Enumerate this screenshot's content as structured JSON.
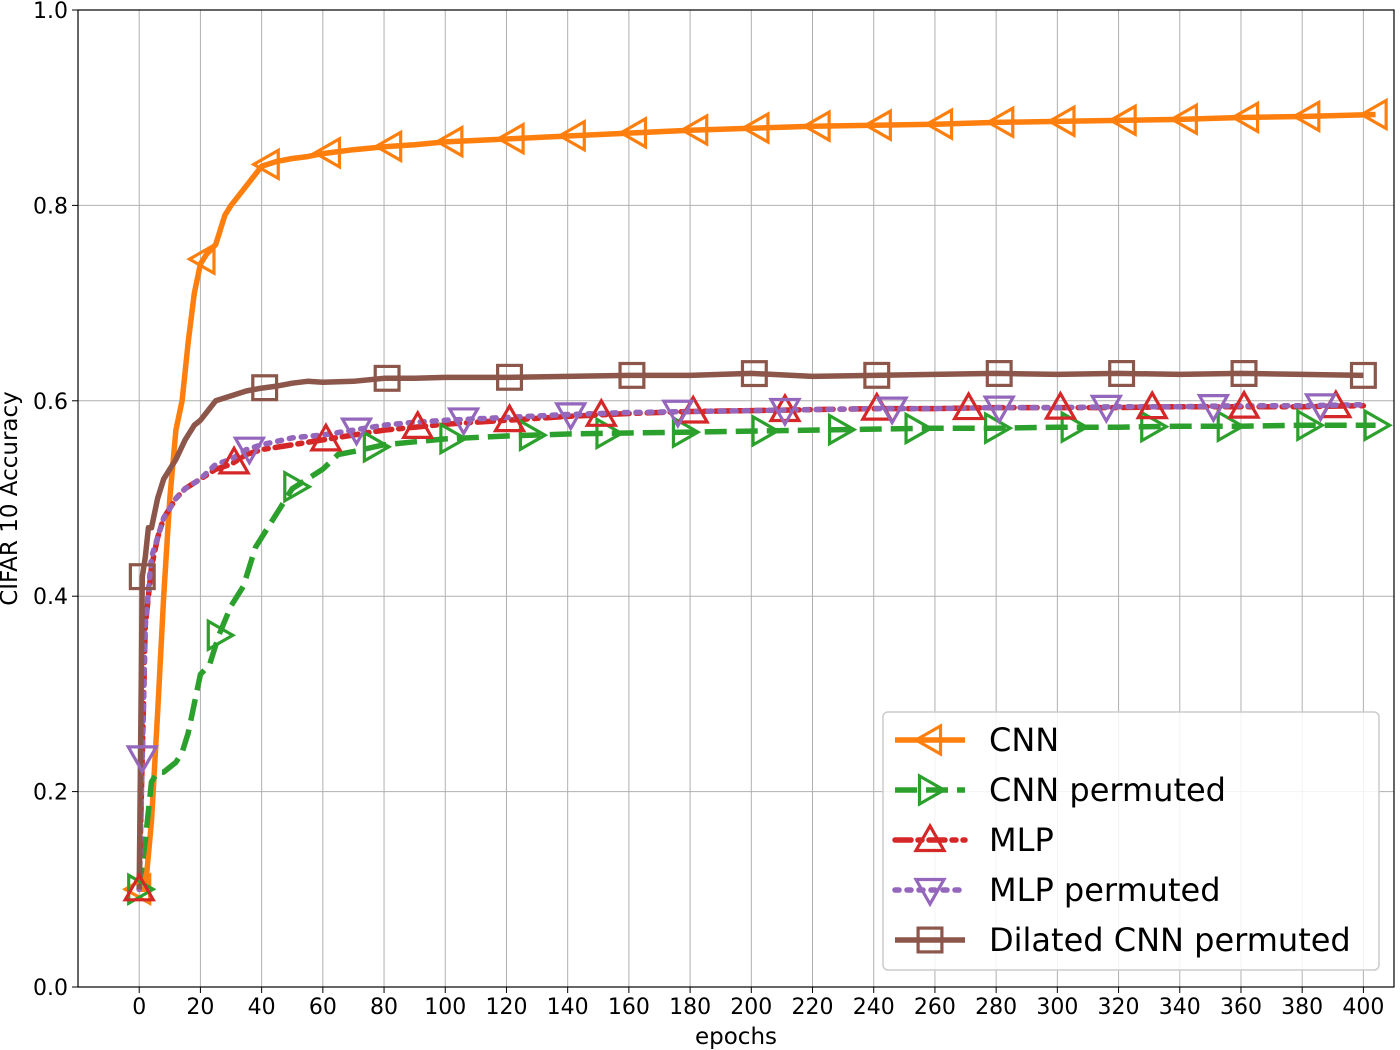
{
  "chart_data": {
    "type": "line",
    "xlabel": "epochs",
    "ylabel": "CIFAR 10 Accuracy",
    "xlim": [
      -20,
      410
    ],
    "ylim": [
      0.0,
      1.0
    ],
    "xticks": [
      0,
      20,
      40,
      60,
      80,
      100,
      120,
      140,
      160,
      180,
      200,
      220,
      240,
      260,
      280,
      300,
      320,
      340,
      360,
      380,
      400
    ],
    "yticks": [
      0.0,
      0.2,
      0.4,
      0.6,
      0.8,
      1.0
    ],
    "xtick_labels": [
      "0",
      "20",
      "40",
      "60",
      "80",
      "100",
      "120",
      "140",
      "160",
      "180",
      "200",
      "220",
      "240",
      "260",
      "280",
      "300",
      "320",
      "340",
      "360",
      "380",
      "400"
    ],
    "ytick_labels": [
      "0.0",
      "0.2",
      "0.4",
      "0.6",
      "0.8",
      "1.0"
    ],
    "grid": true,
    "legend_position": "lower-right",
    "series": [
      {
        "name": "CNN",
        "color": "#ff7f0e",
        "dash": "solid",
        "marker": "triangle-left",
        "marker_x": [
          0,
          21,
          42,
          62,
          82,
          102,
          122,
          142,
          162,
          182,
          202,
          222,
          242,
          262,
          282,
          302,
          322,
          342,
          362,
          382,
          404
        ],
        "x": [
          0,
          2,
          4,
          6,
          8,
          10,
          12,
          14,
          16,
          18,
          20,
          22,
          25,
          28,
          30,
          35,
          40,
          45,
          50,
          55,
          60,
          70,
          80,
          90,
          100,
          120,
          140,
          160,
          180,
          200,
          220,
          240,
          260,
          280,
          300,
          320,
          340,
          360,
          380,
          404
        ],
        "y": [
          0.1,
          0.1,
          0.17,
          0.28,
          0.4,
          0.5,
          0.57,
          0.6,
          0.66,
          0.71,
          0.74,
          0.75,
          0.76,
          0.79,
          0.8,
          0.82,
          0.84,
          0.845,
          0.848,
          0.85,
          0.853,
          0.857,
          0.86,
          0.862,
          0.865,
          0.868,
          0.871,
          0.874,
          0.877,
          0.879,
          0.881,
          0.882,
          0.883,
          0.885,
          0.886,
          0.887,
          0.888,
          0.89,
          0.891,
          0.893
        ]
      },
      {
        "name": "CNN permuted",
        "color": "#2ca02c",
        "dash": "dashed",
        "marker": "triangle-right",
        "marker_x": [
          0,
          26,
          51,
          77,
          102,
          128,
          153,
          178,
          204,
          229,
          254,
          280,
          305,
          331,
          356,
          382,
          404
        ],
        "x": [
          0,
          2,
          4,
          6,
          8,
          10,
          12,
          14,
          16,
          18,
          20,
          23,
          26,
          30,
          34,
          38,
          42,
          46,
          50,
          55,
          60,
          65,
          70,
          80,
          90,
          100,
          120,
          140,
          160,
          180,
          200,
          220,
          240,
          260,
          280,
          300,
          320,
          340,
          360,
          380,
          404
        ],
        "y": [
          0.1,
          0.15,
          0.21,
          0.22,
          0.22,
          0.225,
          0.23,
          0.24,
          0.26,
          0.29,
          0.32,
          0.33,
          0.36,
          0.39,
          0.41,
          0.45,
          0.47,
          0.49,
          0.51,
          0.52,
          0.53,
          0.545,
          0.548,
          0.555,
          0.558,
          0.561,
          0.564,
          0.566,
          0.567,
          0.568,
          0.569,
          0.57,
          0.571,
          0.572,
          0.572,
          0.573,
          0.573,
          0.574,
          0.574,
          0.575,
          0.575
        ]
      },
      {
        "name": "MLP",
        "color": "#d62728",
        "dash": "dash-dot",
        "marker": "triangle-up",
        "marker_x": [
          0,
          31,
          61,
          91,
          121,
          151,
          181,
          211,
          241,
          271,
          301,
          331,
          361,
          391
        ],
        "x": [
          0,
          2,
          4,
          6,
          8,
          10,
          12,
          15,
          20,
          25,
          30,
          35,
          40,
          50,
          60,
          70,
          80,
          90,
          100,
          120,
          140,
          160,
          180,
          200,
          220,
          240,
          260,
          280,
          300,
          320,
          340,
          360,
          380,
          400
        ],
        "y": [
          0.1,
          0.37,
          0.43,
          0.46,
          0.48,
          0.49,
          0.5,
          0.51,
          0.52,
          0.53,
          0.535,
          0.545,
          0.55,
          0.555,
          0.56,
          0.565,
          0.57,
          0.573,
          0.576,
          0.58,
          0.584,
          0.587,
          0.589,
          0.59,
          0.591,
          0.592,
          0.592,
          0.593,
          0.593,
          0.593,
          0.594,
          0.594,
          0.594,
          0.595
        ]
      },
      {
        "name": "MLP permuted",
        "color": "#9467bd",
        "dash": "dotted",
        "marker": "triangle-down",
        "marker_x": [
          1,
          36,
          71,
          106,
          141,
          176,
          211,
          246,
          281,
          316,
          351,
          386
        ],
        "x": [
          0,
          2,
          4,
          6,
          8,
          10,
          12,
          15,
          20,
          25,
          30,
          35,
          40,
          50,
          60,
          70,
          80,
          90,
          100,
          120,
          140,
          160,
          180,
          200,
          220,
          240,
          260,
          280,
          300,
          320,
          340,
          360,
          380,
          400
        ],
        "y": [
          0.1,
          0.37,
          0.44,
          0.46,
          0.48,
          0.49,
          0.5,
          0.51,
          0.52,
          0.535,
          0.54,
          0.55,
          0.555,
          0.562,
          0.565,
          0.57,
          0.575,
          0.578,
          0.58,
          0.583,
          0.586,
          0.588,
          0.589,
          0.59,
          0.591,
          0.592,
          0.592,
          0.593,
          0.593,
          0.594,
          0.594,
          0.595,
          0.595,
          0.596
        ]
      },
      {
        "name": "Dilated CNN permuted",
        "color": "#8c564b",
        "dash": "solid",
        "marker": "square",
        "marker_x": [
          1,
          41,
          81,
          121,
          161,
          201,
          241,
          281,
          321,
          361,
          400
        ],
        "x": [
          0,
          1,
          2,
          3,
          4,
          6,
          8,
          10,
          12,
          15,
          18,
          20,
          25,
          30,
          35,
          40,
          45,
          50,
          55,
          60,
          70,
          80,
          90,
          100,
          120,
          140,
          160,
          180,
          200,
          220,
          240,
          260,
          280,
          300,
          320,
          340,
          360,
          380,
          400
        ],
        "y": [
          0.1,
          0.42,
          0.44,
          0.47,
          0.47,
          0.5,
          0.52,
          0.53,
          0.54,
          0.56,
          0.575,
          0.58,
          0.6,
          0.605,
          0.61,
          0.613,
          0.615,
          0.618,
          0.62,
          0.619,
          0.62,
          0.623,
          0.623,
          0.624,
          0.624,
          0.625,
          0.626,
          0.626,
          0.628,
          0.625,
          0.626,
          0.627,
          0.628,
          0.627,
          0.628,
          0.627,
          0.628,
          0.627,
          0.626
        ]
      }
    ]
  }
}
